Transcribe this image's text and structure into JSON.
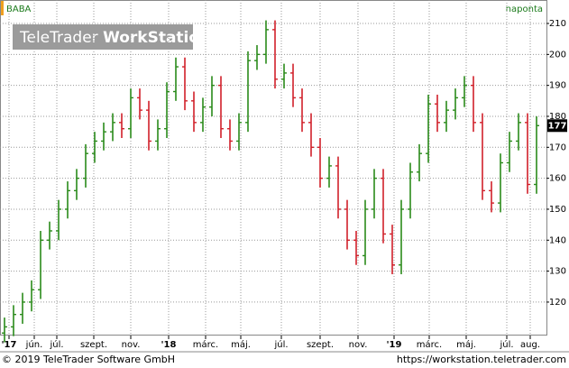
{
  "chart_data": {
    "type": "ohlc",
    "title": "BABA",
    "subtitle": "naponta",
    "watermark": [
      "TeleTrader",
      "WorkStation"
    ],
    "footer_left": "© 2019 TeleTrader Software GmbH",
    "footer_right": "https://workstation.teletrader.com",
    "up_color": "#2a8a1a",
    "down_color": "#d0202a",
    "grid": true,
    "open": [
      110,
      112,
      116,
      120,
      124,
      140,
      143,
      150,
      156,
      160,
      168,
      172,
      175,
      178,
      176,
      186,
      182,
      172,
      176,
      188,
      196,
      185,
      178,
      183,
      190,
      176,
      172,
      178,
      198,
      200,
      208,
      192,
      194,
      186,
      178,
      170,
      160,
      164,
      150,
      140,
      135,
      150,
      160,
      142,
      132,
      150,
      162,
      168,
      184,
      178,
      182,
      186,
      190,
      178,
      156,
      152,
      165,
      172,
      178,
      158
    ],
    "high": [
      115,
      119,
      123,
      127,
      143,
      146,
      153,
      159,
      163,
      171,
      175,
      178,
      181,
      181,
      189,
      189,
      185,
      179,
      191,
      199,
      199,
      188,
      186,
      193,
      193,
      179,
      181,
      201,
      203,
      211,
      211,
      197,
      197,
      189,
      181,
      173,
      167,
      167,
      153,
      143,
      153,
      163,
      163,
      145,
      153,
      165,
      171,
      187,
      187,
      185,
      189,
      193,
      193,
      181,
      159,
      168,
      175,
      181,
      181,
      180
    ],
    "low": [
      107,
      109,
      113,
      117,
      121,
      137,
      140,
      147,
      153,
      157,
      165,
      169,
      172,
      173,
      173,
      179,
      169,
      169,
      173,
      185,
      182,
      175,
      175,
      180,
      173,
      169,
      169,
      175,
      195,
      197,
      189,
      189,
      183,
      175,
      167,
      157,
      157,
      147,
      137,
      132,
      132,
      147,
      139,
      129,
      129,
      147,
      159,
      165,
      175,
      175,
      179,
      183,
      175,
      153,
      149,
      149,
      162,
      169,
      155,
      155
    ],
    "close": [
      112,
      116,
      120,
      124,
      140,
      143,
      150,
      156,
      160,
      168,
      172,
      175,
      178,
      176,
      186,
      182,
      172,
      176,
      188,
      196,
      185,
      178,
      183,
      190,
      176,
      172,
      178,
      198,
      200,
      208,
      192,
      194,
      186,
      178,
      170,
      160,
      164,
      150,
      140,
      135,
      150,
      160,
      142,
      132,
      150,
      162,
      168,
      184,
      178,
      182,
      186,
      190,
      178,
      156,
      152,
      165,
      172,
      178,
      158,
      177
    ],
    "xlim": [
      -0.5,
      60.1
    ],
    "xticks": [
      {
        "value": 0.5,
        "label": "'17"
      },
      {
        "value": 3.3,
        "label": "jún."
      },
      {
        "value": 5.8,
        "label": "júl."
      },
      {
        "value": 9.9,
        "label": "szept."
      },
      {
        "value": 14,
        "label": "nov."
      },
      {
        "value": 18.2,
        "label": "'18"
      },
      {
        "value": 22.3,
        "label": "márc."
      },
      {
        "value": 26.2,
        "label": "máj."
      },
      {
        "value": 30.7,
        "label": "júl."
      },
      {
        "value": 35,
        "label": "szept."
      },
      {
        "value": 39.2,
        "label": "nov."
      },
      {
        "value": 43.2,
        "label": "'19"
      },
      {
        "value": 47.1,
        "label": "márc."
      },
      {
        "value": 51.2,
        "label": "máj."
      },
      {
        "value": 55.7,
        "label": "júl."
      },
      {
        "value": 58.3,
        "label": "aug."
      }
    ],
    "ylim": [
      109.2,
      213.5
    ],
    "yticks": [
      120,
      130,
      140,
      150,
      160,
      170,
      180,
      190,
      200,
      210
    ]
  }
}
